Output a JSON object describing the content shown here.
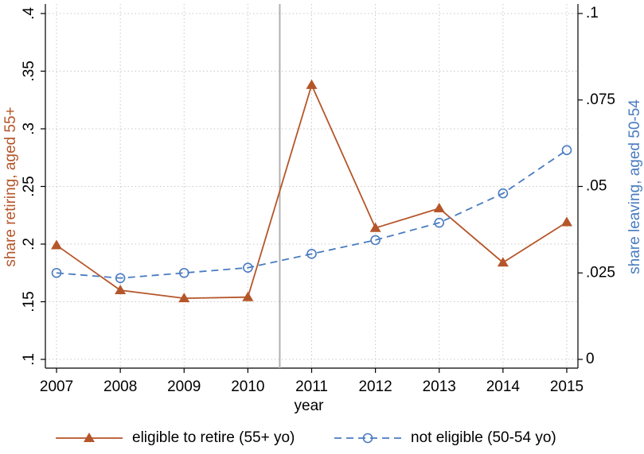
{
  "chart_data": {
    "type": "line",
    "x_label": "year",
    "y_label": "share retiring, aged 55+",
    "y2_label": "share leaving, aged 50-54",
    "x": [
      2007,
      2008,
      2009,
      2010,
      2011,
      2012,
      2013,
      2014,
      2015
    ],
    "xlim": [
      2006.825,
      2015.175
    ],
    "xticks": [
      2007,
      2008,
      2009,
      2010,
      2011,
      2012,
      2013,
      2014,
      2015
    ],
    "ylim": [
      0.1,
      0.4
    ],
    "yticks": [
      {
        "value": 0.1,
        "label": ".1"
      },
      {
        "value": 0.15,
        "label": ".15"
      },
      {
        "value": 0.2,
        "label": ".2"
      },
      {
        "value": 0.25,
        "label": ".25"
      },
      {
        "value": 0.3,
        "label": ".3"
      },
      {
        "value": 0.35,
        "label": ".35"
      },
      {
        "value": 0.4,
        "label": ".4"
      }
    ],
    "y2lim": [
      0,
      0.1
    ],
    "y2ticks": [
      0,
      {
        "value": 0.025,
        "label": ".025"
      },
      {
        "value": 0.05,
        "label": ".05"
      },
      {
        "value": 0.075,
        "label": ".075"
      },
      {
        "value": 0.1,
        "label": ".1"
      }
    ],
    "vline": 2010.5,
    "grid": true,
    "legend": "bottom",
    "series": [
      {
        "name": "eligible to retire (55+ yo)",
        "color": "#b5562a",
        "marker": "triangle",
        "dashed": false,
        "values": [
          0.199,
          0.16,
          0.153,
          0.154,
          0.338,
          0.214,
          0.231,
          0.184,
          0.219
        ]
      },
      {
        "name": "not eligible (50-54 yo)",
        "color": "#4a7cc0",
        "marker": "circle",
        "dashed": true,
        "axis": "y2",
        "values": [
          0.025,
          0.0235,
          0.025,
          0.0265,
          0.0305,
          0.0345,
          0.0395,
          0.048,
          0.0605
        ]
      }
    ]
  }
}
